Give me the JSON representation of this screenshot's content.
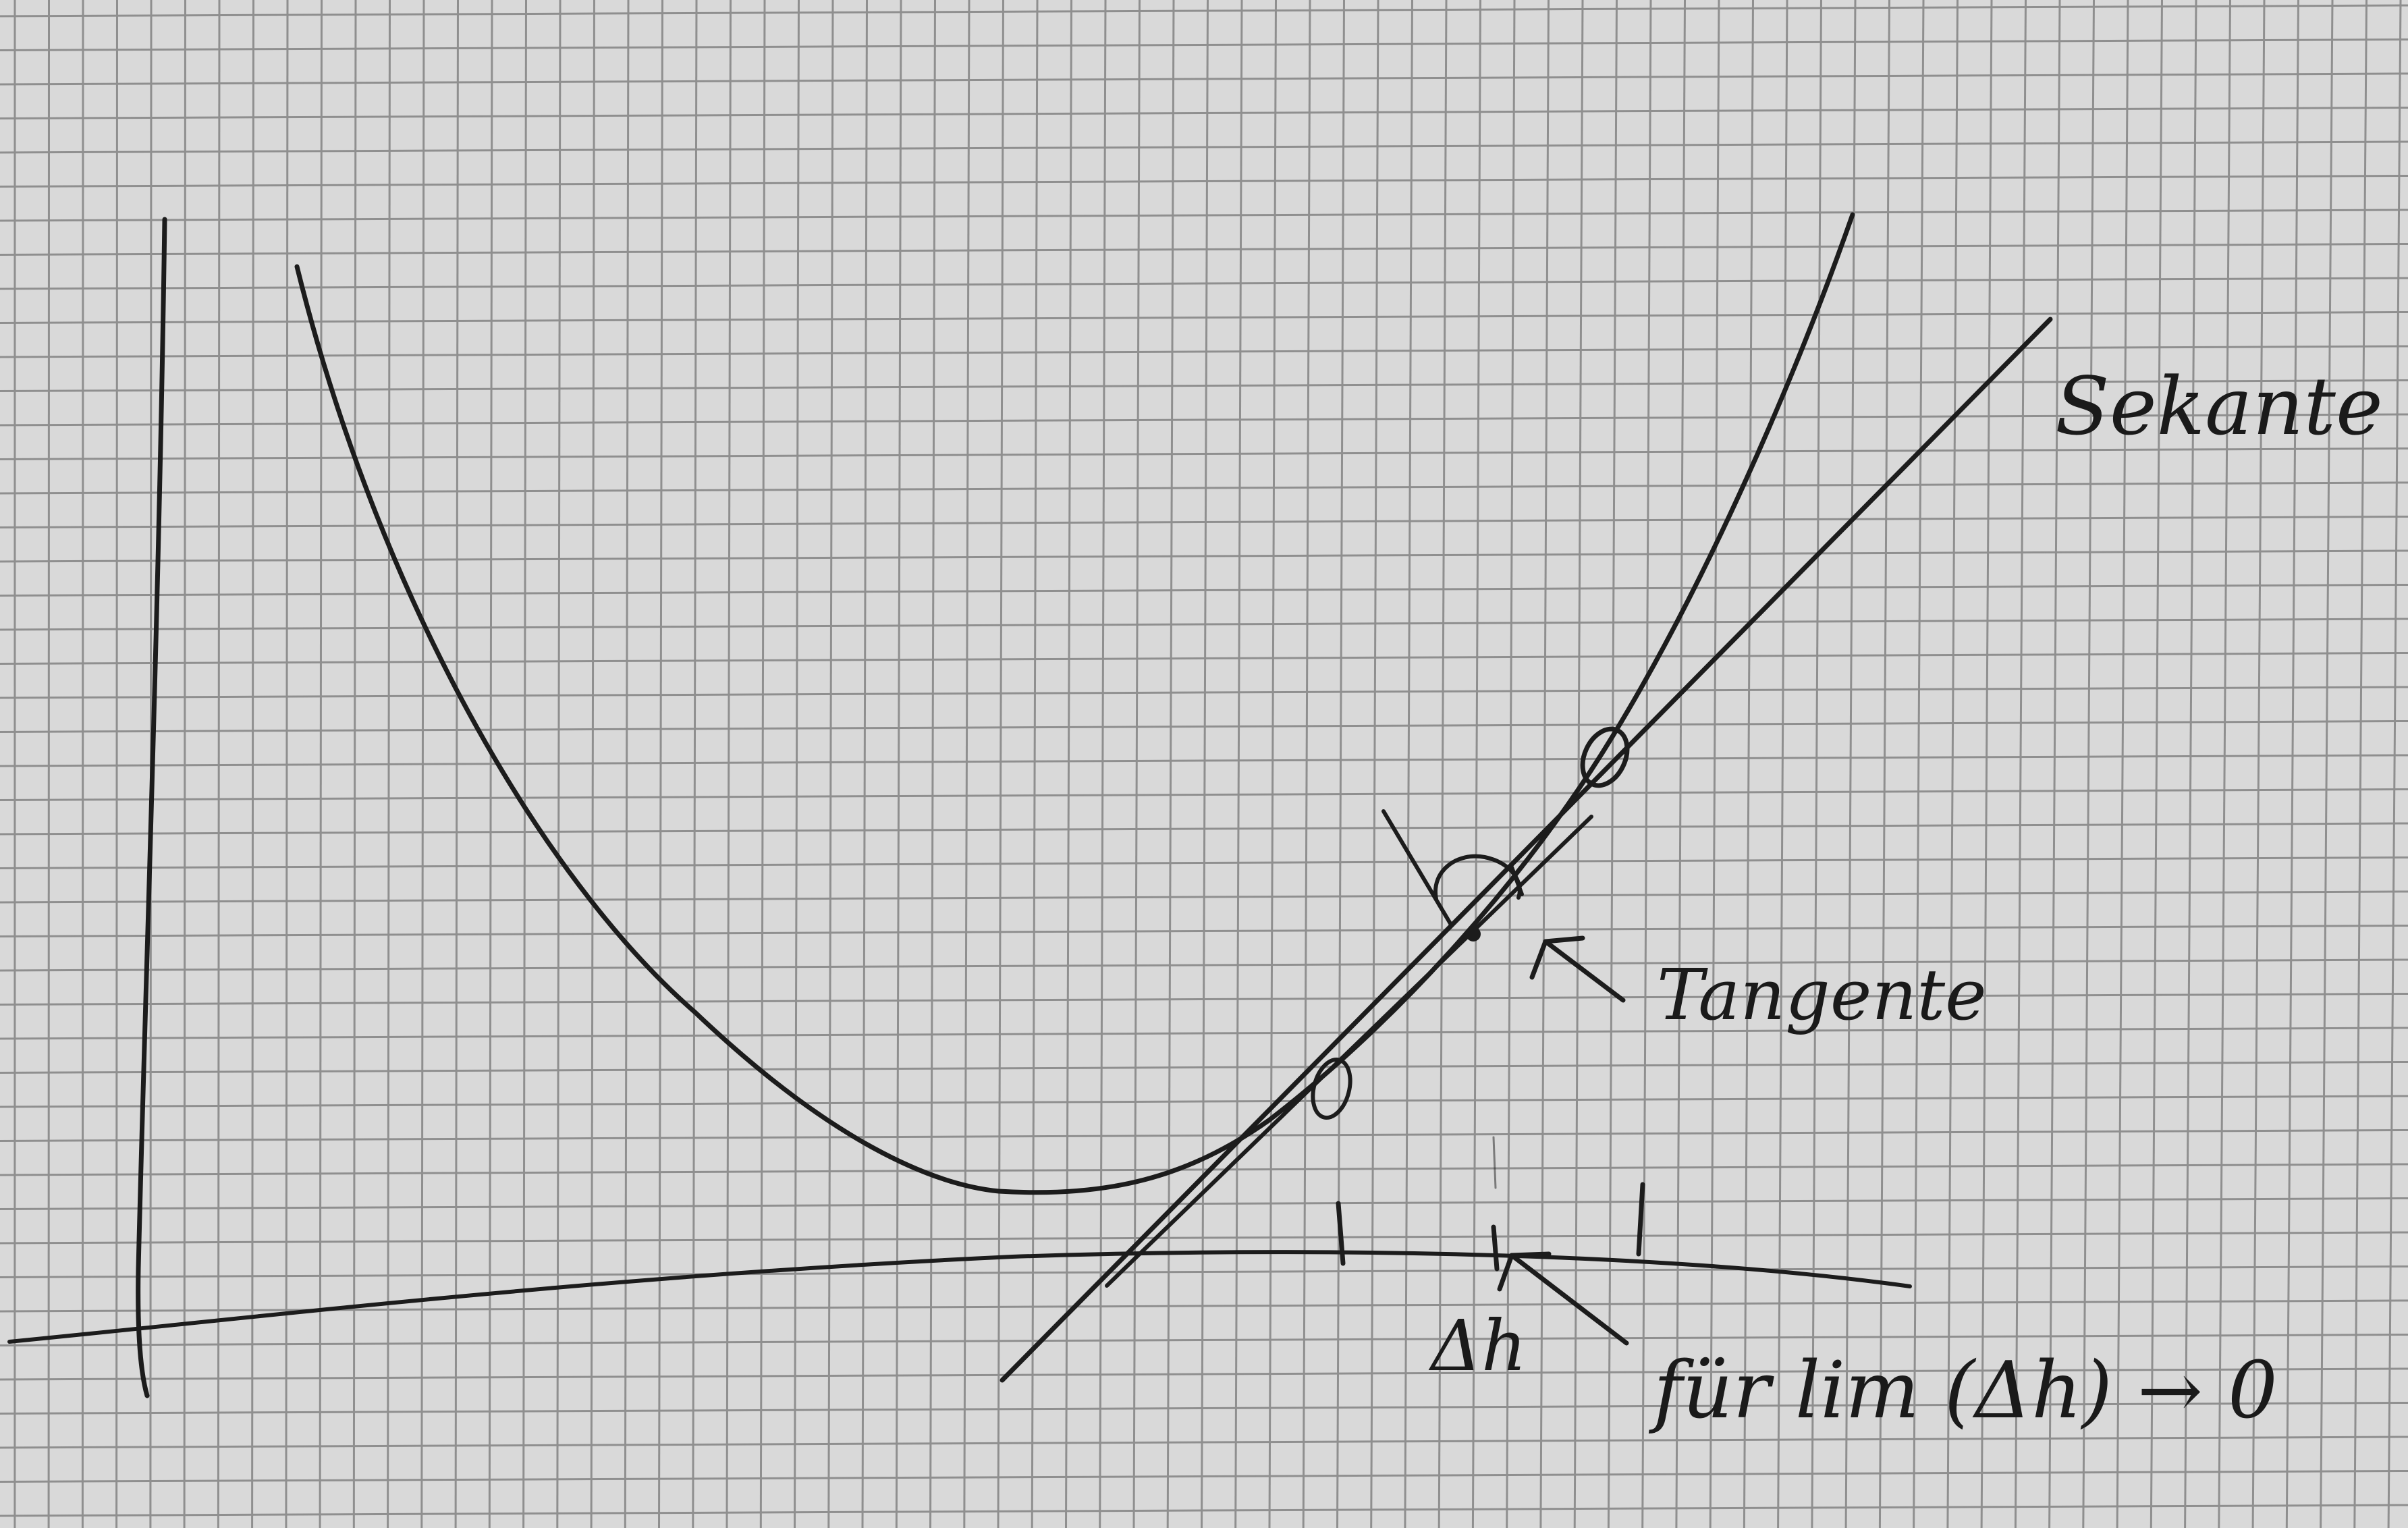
{
  "paper": {
    "background": "#d9d9d9",
    "grid_color": "#8f8f8f",
    "ink_color": "#1c1c1c"
  },
  "labels": {
    "secant": "Sekante",
    "tangent": "Tangente",
    "delta_h": "Δh",
    "limit_note": "für lim (Δh) → 0"
  }
}
